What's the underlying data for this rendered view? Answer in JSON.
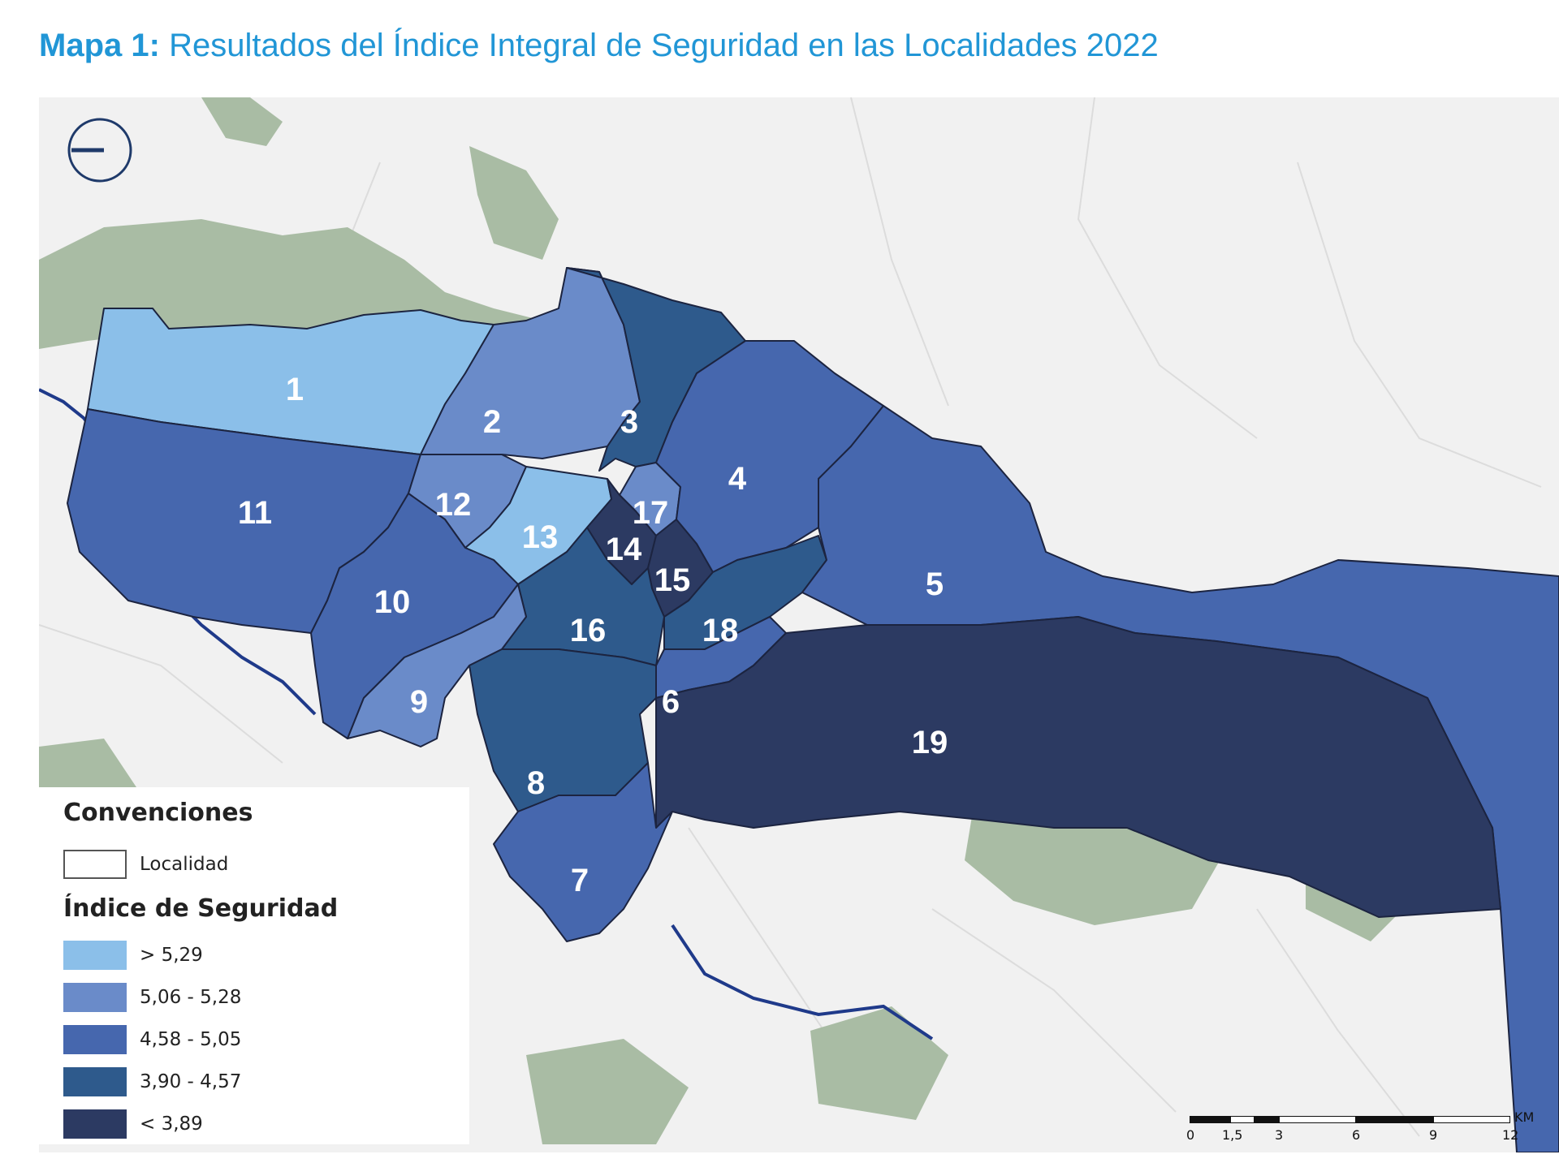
{
  "title": {
    "prefix": "Mapa 1:",
    "text": "Resultados del Índice Integral de Seguridad en las Localidades 2022"
  },
  "colors": {
    "class1": "#8bbfe9",
    "class2": "#6a8bc9",
    "class3": "#4667ae",
    "class4": "#2e5a8c",
    "class5": "#2c3a62",
    "green": "#a9bca4",
    "base": "#f1f1f1",
    "river": "#1f3a8a"
  },
  "legend": {
    "title1": "Convenciones",
    "locality_label": "Localidad",
    "title2": "Índice de Seguridad",
    "classes": [
      {
        "label": "> 5,29",
        "color": "#8bbfe9"
      },
      {
        "label": "5,06 - 5,28",
        "color": "#6a8bc9"
      },
      {
        "label": "4,58 - 5,05",
        "color": "#4667ae"
      },
      {
        "label": "3,90 - 4,57",
        "color": "#2e5a8c"
      },
      {
        "label": "< 3,89",
        "color": "#2c3a62"
      }
    ]
  },
  "localities": [
    {
      "id": "1",
      "class": 1
    },
    {
      "id": "2",
      "class": 2
    },
    {
      "id": "3",
      "class": 4
    },
    {
      "id": "4",
      "class": 3
    },
    {
      "id": "5",
      "class": 3
    },
    {
      "id": "6",
      "class": 3
    },
    {
      "id": "7",
      "class": 3
    },
    {
      "id": "8",
      "class": 4
    },
    {
      "id": "9",
      "class": 2
    },
    {
      "id": "10",
      "class": 3
    },
    {
      "id": "11",
      "class": 3
    },
    {
      "id": "12",
      "class": 2
    },
    {
      "id": "13",
      "class": 1
    },
    {
      "id": "14",
      "class": 5
    },
    {
      "id": "15",
      "class": 5
    },
    {
      "id": "16",
      "class": 4
    },
    {
      "id": "17",
      "class": 2
    },
    {
      "id": "18",
      "class": 4
    },
    {
      "id": "19",
      "class": 5
    }
  ],
  "scale": {
    "ticks": [
      "0",
      "1,5",
      "3",
      "6",
      "9",
      "12"
    ],
    "unit": "KM"
  }
}
